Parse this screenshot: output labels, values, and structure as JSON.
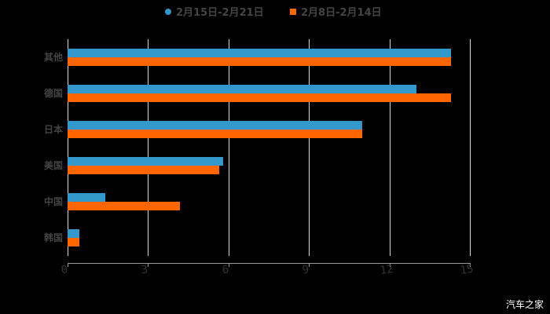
{
  "chart_data": {
    "type": "bar",
    "orientation": "horizontal",
    "title": "",
    "xlabel": "",
    "ylabel": "",
    "categories": [
      "其他",
      "德国",
      "日本",
      "美国",
      "中国",
      "韩国"
    ],
    "series": [
      {
        "name": "2月15日-2月21日",
        "color": "#3399cc",
        "values": [
          14.3,
          13.0,
          11.0,
          5.8,
          1.4,
          0.45
        ]
      },
      {
        "name": "2月8日-2月14日",
        "color": "#ff6600",
        "values": [
          14.3,
          14.3,
          11.0,
          5.65,
          4.2,
          0.45
        ]
      }
    ],
    "xlim": [
      0,
      15
    ],
    "xticks": [
      "0",
      "3",
      "6",
      "9",
      "12",
      "15"
    ],
    "grid": true,
    "legend_position": "top"
  },
  "legend": {
    "series1": "2月15日-2月21日",
    "series2": "2月8日-2月14日"
  },
  "watermark": "汽车之家"
}
